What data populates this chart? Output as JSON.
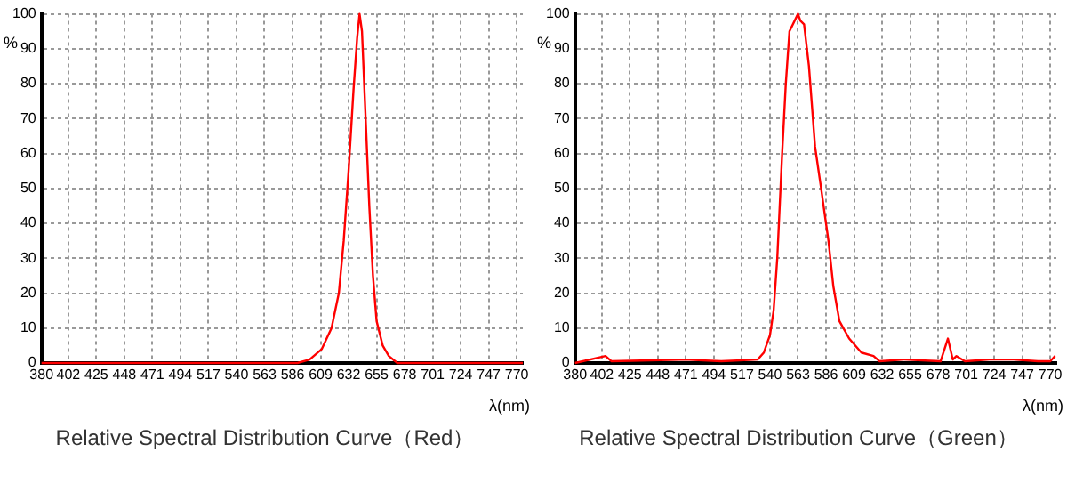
{
  "chart_data": [
    {
      "type": "line",
      "title": "Relative Spectral Distribution Curve（Red）",
      "xlabel": "λ(nm)",
      "ylabel": "%",
      "series": [
        {
          "color": "#ff0000",
          "x": [
            380,
            590,
            600,
            610,
            618,
            624,
            628,
            632,
            636,
            639,
            641,
            643,
            646,
            649,
            652,
            655,
            660,
            665,
            672,
            775
          ],
          "values": [
            0,
            0,
            1,
            4,
            10,
            20,
            35,
            55,
            78,
            93,
            100,
            95,
            70,
            45,
            25,
            12,
            5,
            2,
            0,
            0
          ]
        }
      ],
      "xlim": [
        380,
        775
      ],
      "xticks": [
        380,
        402,
        425,
        448,
        471,
        494,
        517,
        540,
        563,
        586,
        609,
        632,
        655,
        678,
        701,
        724,
        747,
        770
      ],
      "ylim": [
        0,
        100
      ],
      "yticks": [
        0,
        10,
        20,
        30,
        40,
        50,
        60,
        70,
        80,
        90,
        100
      ],
      "grid": true,
      "legend": false,
      "marker": "none",
      "line_style": "solid"
    },
    {
      "type": "line",
      "title": "Relative Spectral Distribution Curve（Green）",
      "xlabel": "λ(nm)",
      "ylabel": "%",
      "series": [
        {
          "color": "#ff0000",
          "x": [
            380,
            405,
            410,
            470,
            500,
            530,
            535,
            540,
            543,
            546,
            550,
            553,
            556,
            563,
            565,
            568,
            572,
            577,
            582,
            588,
            592,
            597,
            605,
            615,
            625,
            630,
            650,
            680,
            686,
            690,
            693,
            700,
            720,
            740,
            760,
            770,
            774
          ],
          "values": [
            0,
            2,
            0.5,
            1,
            0.5,
            1,
            3,
            8,
            15,
            30,
            60,
            80,
            95,
            100,
            98,
            97,
            85,
            62,
            50,
            35,
            22,
            12,
            7,
            3,
            2,
            0.5,
            1,
            0.5,
            7,
            1,
            2,
            0.5,
            1,
            1,
            0.5,
            0.5,
            2
          ]
        }
      ],
      "xlim": [
        380,
        775
      ],
      "xticks": [
        380,
        402,
        425,
        448,
        471,
        494,
        517,
        540,
        563,
        586,
        609,
        632,
        655,
        678,
        701,
        724,
        747,
        770
      ],
      "ylim": [
        0,
        100
      ],
      "yticks": [
        0,
        10,
        20,
        30,
        40,
        50,
        60,
        70,
        80,
        90,
        100
      ],
      "grid": true,
      "legend": false,
      "marker": "none",
      "line_style": "solid"
    }
  ]
}
